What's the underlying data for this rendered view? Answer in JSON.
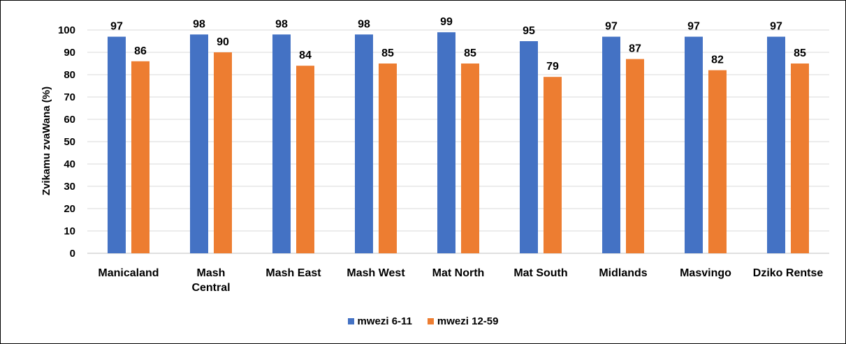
{
  "chart_data": {
    "type": "bar",
    "ylabel": "Zvikamu zvaWana  (%)",
    "ylim": [
      0,
      100
    ],
    "yticks": [
      0,
      10,
      20,
      30,
      40,
      50,
      60,
      70,
      80,
      90,
      100
    ],
    "grid": true,
    "legend_position": "bottom",
    "categories": [
      [
        "Manicaland"
      ],
      [
        "Mash",
        "Central"
      ],
      [
        "Mash East"
      ],
      [
        "Mash West"
      ],
      [
        "Mat North"
      ],
      [
        "Mat South"
      ],
      [
        "Midlands"
      ],
      [
        "Masvingo"
      ],
      [
        "Dziko Rentse"
      ]
    ],
    "series": [
      {
        "name": "mwezi 6-11",
        "color": "#4472C4",
        "values": [
          97,
          98,
          98,
          98,
          99,
          95,
          97,
          97,
          97
        ]
      },
      {
        "name": "mwezi 12-59",
        "color": "#ED7D31",
        "values": [
          86,
          90,
          84,
          85,
          85,
          79,
          87,
          82,
          85
        ]
      }
    ]
  }
}
